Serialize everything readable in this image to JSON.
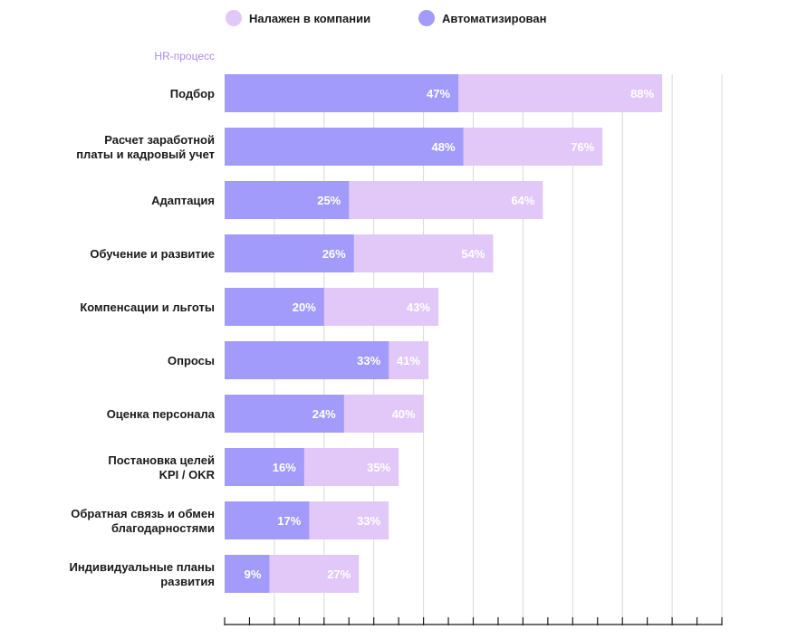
{
  "chart_data": {
    "type": "bar",
    "orientation": "horizontal",
    "overlay": true,
    "y_axis_title": "HR-процесс",
    "categories": [
      "Подбор",
      "Расчет заработной\nплаты и кадровый учет",
      "Адаптация",
      "Обучение и развитие",
      "Компенсации и льготы",
      "Опросы",
      "Оценка персонала",
      "Постановка целей\nKPI / OKR",
      "Обратная связь и обмен\nблагодарностями",
      "Индивидуальные планы\nразвития"
    ],
    "series": [
      {
        "name": "Налажен в компании",
        "color": "#e2c8f8",
        "values": [
          88,
          76,
          64,
          54,
          43,
          41,
          40,
          35,
          33,
          27
        ],
        "labels": [
          "88%",
          "76%",
          "64%",
          "54%",
          "43%",
          "41%",
          "40%",
          "35%",
          "33%",
          "27%"
        ]
      },
      {
        "name": "Автоматизирован",
        "color": "#a29bfb",
        "values": [
          47,
          48,
          25,
          26,
          20,
          33,
          24,
          16,
          17,
          9
        ],
        "labels": [
          "47%",
          "48%",
          "25%",
          "26%",
          "20%",
          "33%",
          "24%",
          "16%",
          "17%",
          "9%"
        ]
      }
    ],
    "xlim": [
      0,
      100
    ],
    "x_grid_step": 10,
    "x_tick_step": 5,
    "grid": true,
    "legend_position": "top"
  }
}
